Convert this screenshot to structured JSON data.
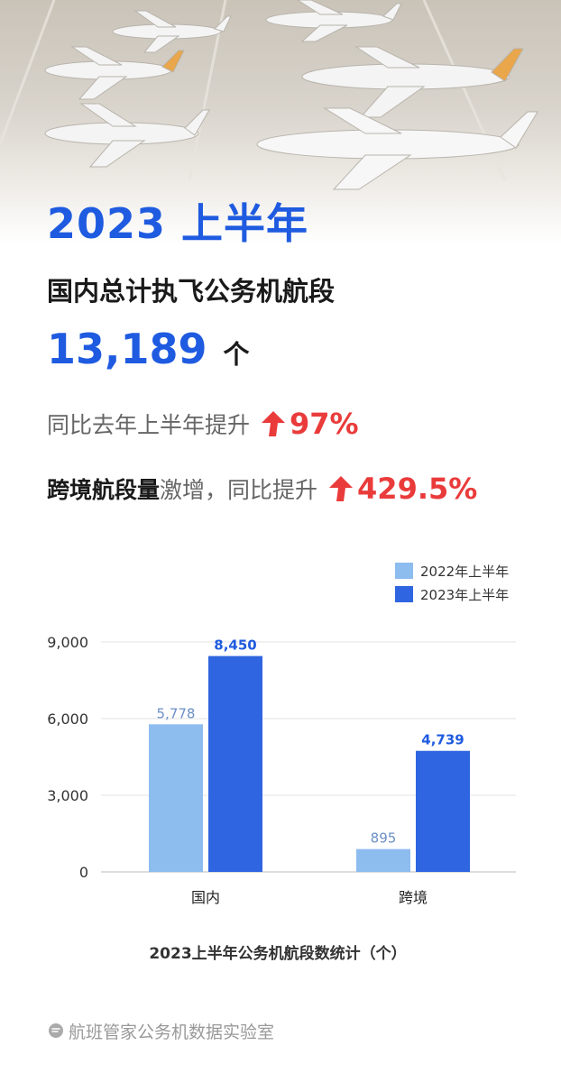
{
  "header": {
    "headline": "2023 上半年",
    "subhead": "国内总计执飞公务机航段",
    "total_value": "13,189",
    "total_unit": "个",
    "yoy_label": "同比去年上半年提升",
    "yoy_value": "97%",
    "cross_strong": "跨境航段量",
    "cross_rest": "激增，同比提升",
    "cross_value": "429.5%"
  },
  "hero_icons": {
    "aircraft": "business-jet-icon"
  },
  "colors": {
    "accent_blue": "#1f5be0",
    "up_red": "#ea3b3b",
    "series_2022": "#8dbcef",
    "series_2023": "#2f65e0"
  },
  "chart_data": {
    "type": "bar",
    "title": "2023上半年公务机航段数统计（个）",
    "categories": [
      "国内",
      "跨境"
    ],
    "series": [
      {
        "name": "2022年上半年",
        "values": [
          5778,
          895
        ],
        "labels": [
          "5,778",
          "895"
        ]
      },
      {
        "name": "2023年上半年",
        "values": [
          8450,
          4739
        ],
        "labels": [
          "8,450",
          "4,739"
        ]
      }
    ],
    "ylim": [
      0,
      9000
    ],
    "yticks": [
      0,
      3000,
      6000,
      9000
    ],
    "ytick_labels": [
      "0",
      "3,000",
      "6,000",
      "9,000"
    ],
    "grid": true,
    "legend_position": "top-right"
  },
  "footer": {
    "text": "航班管家公务机数据实验室",
    "logo_icon": "chat-bubble-logo-icon"
  }
}
